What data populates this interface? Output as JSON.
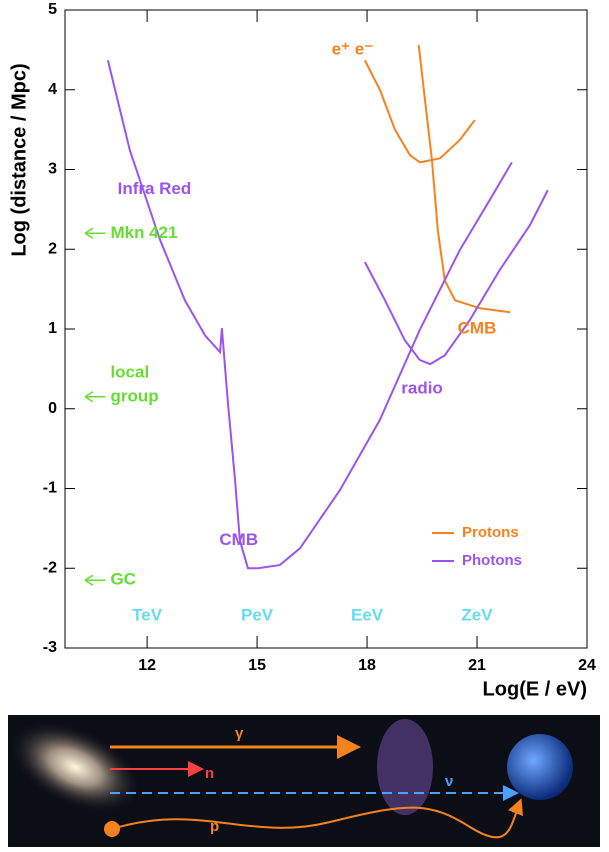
{
  "chart_data": {
    "type": "line",
    "xlabel": "Log(E / eV)",
    "ylabel": "Log (distance / Mpc)",
    "xlim": [
      9.76,
      24
    ],
    "ylim": [
      -3,
      5
    ],
    "xticks": [
      12,
      15,
      18,
      21,
      24
    ],
    "yticks": [
      -3,
      -2,
      -1,
      0,
      1,
      2,
      3,
      4,
      5
    ],
    "legend": "lower right",
    "series": [
      {
        "name": "Protons",
        "color": "#f5821f",
        "x": [
          17.94,
          18.35,
          18.76,
          19.17,
          19.44,
          19.99,
          20.53,
          20.94,
          null,
          19.41,
          19.58,
          19.77,
          19.93,
          20.12,
          20.4,
          21.08,
          21.9
        ],
        "values": [
          4.37,
          4.0,
          3.5,
          3.18,
          3.09,
          3.14,
          3.37,
          3.62,
          null,
          4.56,
          3.87,
          3.12,
          2.24,
          1.61,
          1.36,
          1.26,
          1.21
        ]
      },
      {
        "name": "Photons",
        "color": "#9a55ee",
        "x": [
          10.93,
          11.53,
          12.35,
          13.03,
          13.58,
          13.99,
          14.04,
          14.2,
          14.4,
          14.53,
          14.75,
          15.02,
          15.62,
          16.17,
          17.26,
          18.35,
          19.44,
          20.53,
          21.35,
          21.95,
          null,
          17.94,
          18.49,
          19.03,
          19.44,
          19.72,
          20.12,
          20.8,
          21.62,
          22.44,
          22.93
        ],
        "values": [
          4.37,
          3.24,
          2.12,
          1.36,
          0.92,
          0.71,
          1.01,
          0.1,
          -0.9,
          -1.65,
          -2.0,
          -2.0,
          -1.96,
          -1.75,
          -1.02,
          -0.14,
          0.99,
          1.99,
          2.62,
          3.09,
          null,
          1.84,
          1.36,
          0.86,
          0.61,
          0.56,
          0.67,
          1.11,
          1.74,
          2.3,
          2.74
        ]
      }
    ],
    "annotations": [
      {
        "text": "Infra Red",
        "x": 12.2,
        "y": 2.75,
        "color": "#9a55ee"
      },
      {
        "text": "CMB",
        "x": 14.5,
        "y": -1.65,
        "color": "#9a55ee"
      },
      {
        "text": "radio",
        "x": 19.5,
        "y": 0.25,
        "color": "#9a55ee"
      },
      {
        "text": "CMB",
        "x": 21.0,
        "y": 1.0,
        "color": "#f5821f"
      },
      {
        "text": "e⁺ e⁻",
        "x": 17.6,
        "y": 4.5,
        "color": "#f5821f"
      },
      {
        "text": "Mkn 421",
        "x": 11.0,
        "y": 2.2,
        "color": "#66dd33",
        "arrow": true
      },
      {
        "text": "local",
        "x": 11.0,
        "y": 0.45,
        "color": "#66dd33",
        "arrow": false
      },
      {
        "text": "group",
        "x": 11.0,
        "y": 0.15,
        "color": "#66dd33",
        "arrow": true
      },
      {
        "text": "GC",
        "x": 11.0,
        "y": -2.15,
        "color": "#66dd33",
        "arrow": true
      },
      {
        "text": "TeV",
        "x": 12,
        "y": -2.6,
        "color": "#66ddee"
      },
      {
        "text": "PeV",
        "x": 15,
        "y": -2.6,
        "color": "#66ddee"
      },
      {
        "text": "EeV",
        "x": 18,
        "y": -2.6,
        "color": "#66ddee"
      },
      {
        "text": "ZeV",
        "x": 21,
        "y": -2.6,
        "color": "#66ddee"
      }
    ]
  },
  "diagram": {
    "labels": [
      "γ",
      "n",
      "ν",
      "p"
    ]
  }
}
